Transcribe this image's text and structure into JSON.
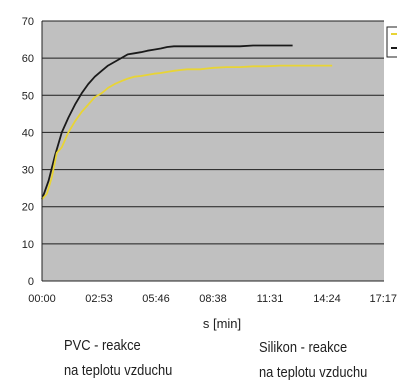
{
  "chart_data": {
    "type": "line",
    "xlabel": "s [min]",
    "ylabel": "",
    "x_tick_labels": [
      "00:00",
      "02:53",
      "05:46",
      "08:38",
      "11:31",
      "14:24",
      "17:17"
    ],
    "y_ticks": [
      0,
      10,
      20,
      30,
      40,
      50,
      60,
      70
    ],
    "xlim_seconds": [
      0,
      1037
    ],
    "ylim": [
      0,
      70
    ],
    "grid": true,
    "legend_position": "top-right (clipped)",
    "series": [
      {
        "color": "#1a1a1a",
        "x_seconds": [
          0,
          20,
          40,
          60,
          80,
          100,
          120,
          140,
          160,
          180,
          200,
          220,
          240,
          260,
          280,
          300,
          320,
          340,
          360,
          380,
          400,
          440,
          480,
          520,
          560,
          600,
          640,
          680,
          720,
          760
        ],
        "values": [
          22,
          27,
          34,
          40,
          44,
          47.5,
          50.5,
          53,
          55,
          56.5,
          58,
          59,
          60,
          61,
          61.3,
          61.6,
          62,
          62.3,
          62.6,
          63,
          63.2,
          63.2,
          63.2,
          63.2,
          63.2,
          63.2,
          63.4,
          63.4,
          63.4,
          63.4
        ]
      },
      {
        "color": "#e8d435",
        "x_seconds": [
          0,
          15,
          30,
          45,
          60,
          80,
          100,
          120,
          140,
          160,
          180,
          200,
          220,
          240,
          260,
          280,
          300,
          320,
          340,
          360,
          380,
          400,
          420,
          440,
          460,
          480,
          500,
          520,
          560,
          600,
          640,
          680,
          720,
          760,
          800,
          840,
          880
        ],
        "values": [
          22,
          23.5,
          28,
          34.5,
          36,
          40,
          43,
          45.5,
          47.5,
          49.5,
          50.5,
          52,
          53,
          53.8,
          54.5,
          55,
          55.2,
          55.5,
          55.8,
          56,
          56.3,
          56.6,
          56.8,
          57,
          57,
          57,
          57.2,
          57.4,
          57.6,
          57.6,
          57.8,
          57.8,
          58,
          58,
          58,
          58,
          58
        ]
      }
    ],
    "annotations": [
      [
        "PVC - reakce",
        "na teplotu vzduchu"
      ],
      [
        "Silikon - reakce",
        "na teplotu vzduchu"
      ]
    ]
  }
}
